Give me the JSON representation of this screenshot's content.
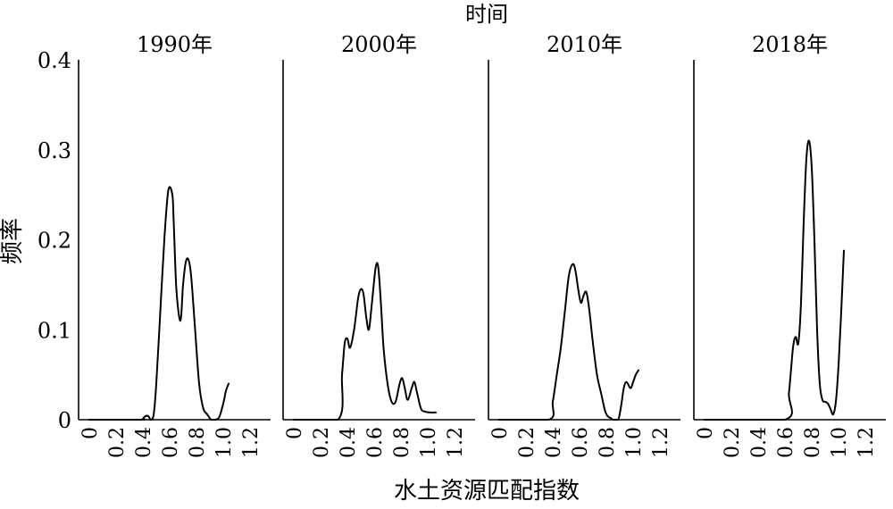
{
  "chart_data": {
    "type": "line",
    "title": "时间",
    "xlabel": "水土资源匹配指数",
    "ylabel": "频率",
    "xlim": [
      0,
      1.2
    ],
    "ylim": [
      0,
      0.4
    ],
    "x_ticks": [
      "0",
      "0.2",
      "0.4",
      "0.6",
      "0.8",
      "1.0",
      "1.2"
    ],
    "y_ticks": [
      "0",
      "0.1",
      "0.2",
      "0.3",
      "0.4"
    ],
    "grid": false,
    "panels": [
      {
        "name": "1990年",
        "x": [
          0.0,
          0.38,
          0.4,
          0.42,
          0.44,
          0.46,
          0.48,
          0.5,
          0.53,
          0.56,
          0.59,
          0.62,
          0.63,
          0.65,
          0.68,
          0.7,
          0.72,
          0.74,
          0.76,
          0.79,
          0.82,
          0.85,
          0.88,
          0.91,
          0.94,
          0.97,
          1.0,
          1.02,
          1.04
        ],
        "y": [
          0.0,
          0.0,
          0.001,
          0.004,
          0.004,
          0.0,
          0.005,
          0.04,
          0.12,
          0.2,
          0.255,
          0.25,
          0.22,
          0.145,
          0.11,
          0.15,
          0.175,
          0.178,
          0.16,
          0.1,
          0.04,
          0.013,
          0.006,
          0.0,
          0.0,
          0.003,
          0.018,
          0.032,
          0.04
        ]
      },
      {
        "name": "2000年",
        "x": [
          0.0,
          0.33,
          0.36,
          0.38,
          0.4,
          0.42,
          0.45,
          0.48,
          0.5,
          0.52,
          0.54,
          0.56,
          0.58,
          0.61,
          0.63,
          0.65,
          0.67,
          0.7,
          0.73,
          0.76,
          0.79,
          0.81,
          0.83,
          0.85,
          0.88,
          0.9,
          0.92,
          0.95,
          0.98,
          1.02,
          1.06
        ],
        "y": [
          0.0,
          0.0,
          0.05,
          0.085,
          0.09,
          0.08,
          0.1,
          0.135,
          0.145,
          0.14,
          0.115,
          0.1,
          0.125,
          0.168,
          0.17,
          0.13,
          0.08,
          0.04,
          0.02,
          0.02,
          0.04,
          0.046,
          0.034,
          0.022,
          0.035,
          0.042,
          0.03,
          0.012,
          0.009,
          0.008,
          0.008
        ]
      },
      {
        "name": "2010年",
        "x": [
          0.0,
          0.37,
          0.4,
          0.43,
          0.46,
          0.49,
          0.52,
          0.55,
          0.57,
          0.59,
          0.61,
          0.63,
          0.65,
          0.67,
          0.7,
          0.73,
          0.76,
          0.79,
          0.81,
          0.83,
          0.85,
          0.87,
          0.89,
          0.91,
          0.93,
          0.95,
          0.98,
          1.0,
          1.02,
          1.04
        ],
        "y": [
          0.0,
          0.0,
          0.02,
          0.05,
          0.08,
          0.12,
          0.16,
          0.173,
          0.165,
          0.145,
          0.13,
          0.138,
          0.142,
          0.125,
          0.085,
          0.05,
          0.03,
          0.01,
          0.004,
          0.002,
          0.0,
          0.0,
          0.0,
          0.015,
          0.035,
          0.042,
          0.035,
          0.042,
          0.05,
          0.055
        ]
      },
      {
        "name": "2018年",
        "x": [
          0.0,
          0.6,
          0.63,
          0.66,
          0.68,
          0.7,
          0.72,
          0.74,
          0.76,
          0.78,
          0.8,
          0.82,
          0.84,
          0.86,
          0.88,
          0.9,
          0.92,
          0.94,
          0.96,
          0.98,
          1.0,
          1.02,
          1.04
        ],
        "y": [
          0.0,
          0.0,
          0.03,
          0.08,
          0.092,
          0.085,
          0.13,
          0.22,
          0.29,
          0.31,
          0.28,
          0.2,
          0.1,
          0.04,
          0.022,
          0.02,
          0.018,
          0.012,
          0.006,
          0.02,
          0.06,
          0.12,
          0.188
        ]
      }
    ]
  }
}
